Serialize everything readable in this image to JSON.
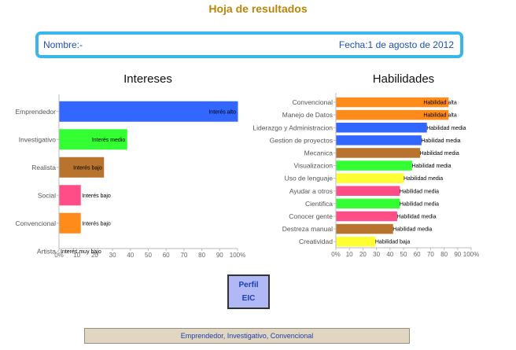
{
  "header": {
    "title": "Hoja de resultados"
  },
  "info": {
    "name": "Nombre:-",
    "date": "Fecha:1 de agosto de 2012"
  },
  "colors": {
    "title": "#b8860b",
    "box_border": "#3ab6ea",
    "text_blue": "#1f4fb0"
  },
  "profile": {
    "line1": "Perfil",
    "line2": "EIC"
  },
  "summary": {
    "text": "Emprendedor, Investigativo, Convencional"
  },
  "chart_data": [
    {
      "type": "bar",
      "orientation": "horizontal",
      "title": "Intereses",
      "categories": [
        "Emprendedor",
        "Investigativo",
        "Realista",
        "Social",
        "Convencional",
        "Artista"
      ],
      "values": [
        100,
        38,
        25,
        12,
        12,
        0
      ],
      "labels": [
        "Interés alto",
        "Interés medio",
        "Interés bajo",
        "Interés bajo",
        "Interés bajo",
        "Interés muy bajo"
      ],
      "colors": [
        "#3366ff",
        "#33ff33",
        "#b8732e",
        "#ff4d88",
        "#ff8c1a",
        "#cccccc"
      ],
      "xlim": [
        0,
        100
      ],
      "ticks": [
        "0%",
        "10",
        "20",
        "30",
        "40",
        "50",
        "60",
        "70",
        "80",
        "90",
        "100%"
      ],
      "grid": false
    },
    {
      "type": "bar",
      "orientation": "horizontal",
      "title": "Habilidades",
      "categories": [
        "Convencional",
        "Manejo de Datos",
        "Liderazgo y Administracion",
        "Gestion de proyectos",
        "Mecanica",
        "Visualizacion",
        "Uso de lenguaje",
        "Ayudar a otros",
        "Cientifica",
        "Conocer gente",
        "Destreza manual",
        "Creatividad"
      ],
      "values": [
        83,
        83,
        67,
        63,
        62,
        56,
        50,
        47,
        47,
        45,
        42,
        29
      ],
      "labels": [
        "Habilidad alta",
        "Habilidad alta",
        "Habilidad media",
        "Habilidad media",
        "Habilidad media",
        "Habilidad media",
        "Habilidad media",
        "Habilidad media",
        "Habilidad media",
        "Habilidad media",
        "Habilidad media",
        "Habilidad baja"
      ],
      "colors": [
        "#ff8c1a",
        "#ff8c1a",
        "#3366ff",
        "#3366ff",
        "#b8732e",
        "#33ff33",
        "#ffff33",
        "#ff4d88",
        "#33ff33",
        "#ff4d88",
        "#b8732e",
        "#ffff33"
      ],
      "xlim": [
        0,
        100
      ],
      "ticks": [
        "0%",
        "10",
        "20",
        "30",
        "40",
        "50",
        "60",
        "70",
        "80",
        "90",
        "100%"
      ],
      "grid": false
    }
  ]
}
